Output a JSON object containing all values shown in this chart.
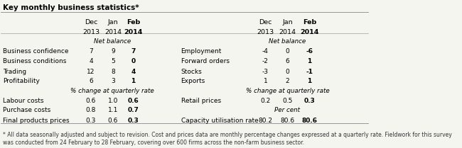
{
  "title": "Key monthly business statistics*",
  "left_table": {
    "net_balance_label": "Net balance",
    "net_balance_rows": [
      [
        "Business confidence",
        "7",
        "9",
        "7"
      ],
      [
        "Business conditions",
        "4",
        "5",
        "0"
      ],
      [
        "Trading",
        "12",
        "8",
        "4"
      ],
      [
        "Profitability",
        "6",
        "3",
        "1"
      ]
    ],
    "pct_label": "% change at quarterly rate",
    "pct_rows": [
      [
        "Labour costs",
        "0.6",
        "1.0",
        "0.6"
      ],
      [
        "Purchase costs",
        "0.8",
        "1.1",
        "0.7"
      ],
      [
        "Final products prices",
        "0.3",
        "0.6",
        "0.3"
      ]
    ]
  },
  "right_table": {
    "net_balance_label": "Net balance",
    "net_balance_rows": [
      [
        "Employment",
        "-4",
        "0",
        "-6"
      ],
      [
        "Forward orders",
        "-2",
        "6",
        "1"
      ],
      [
        "Stocks",
        "-3",
        "0",
        "-1"
      ],
      [
        "Exports",
        "1",
        "2",
        "1"
      ]
    ],
    "pct_label": "% change at quarterly rate",
    "pct_rows": [
      [
        "Retail prices",
        "0.2",
        "0.5",
        "0.3"
      ]
    ],
    "per_cent_label": "Per cent",
    "per_cent_rows": [
      [
        "Capacity utilisation rate",
        "80.2",
        "80.6",
        "80.6"
      ]
    ]
  },
  "footnote": "* All data seasonally adjusted and subject to revision. Cost and prices data are monthly percentage changes expressed at a quarterly rate. Fieldwork for this survey\nwas conducted from 24 February to 28 February, covering over 600 firms across the non-farm business sector.",
  "bg_color": "#f5f5f0",
  "line_color": "#888888"
}
